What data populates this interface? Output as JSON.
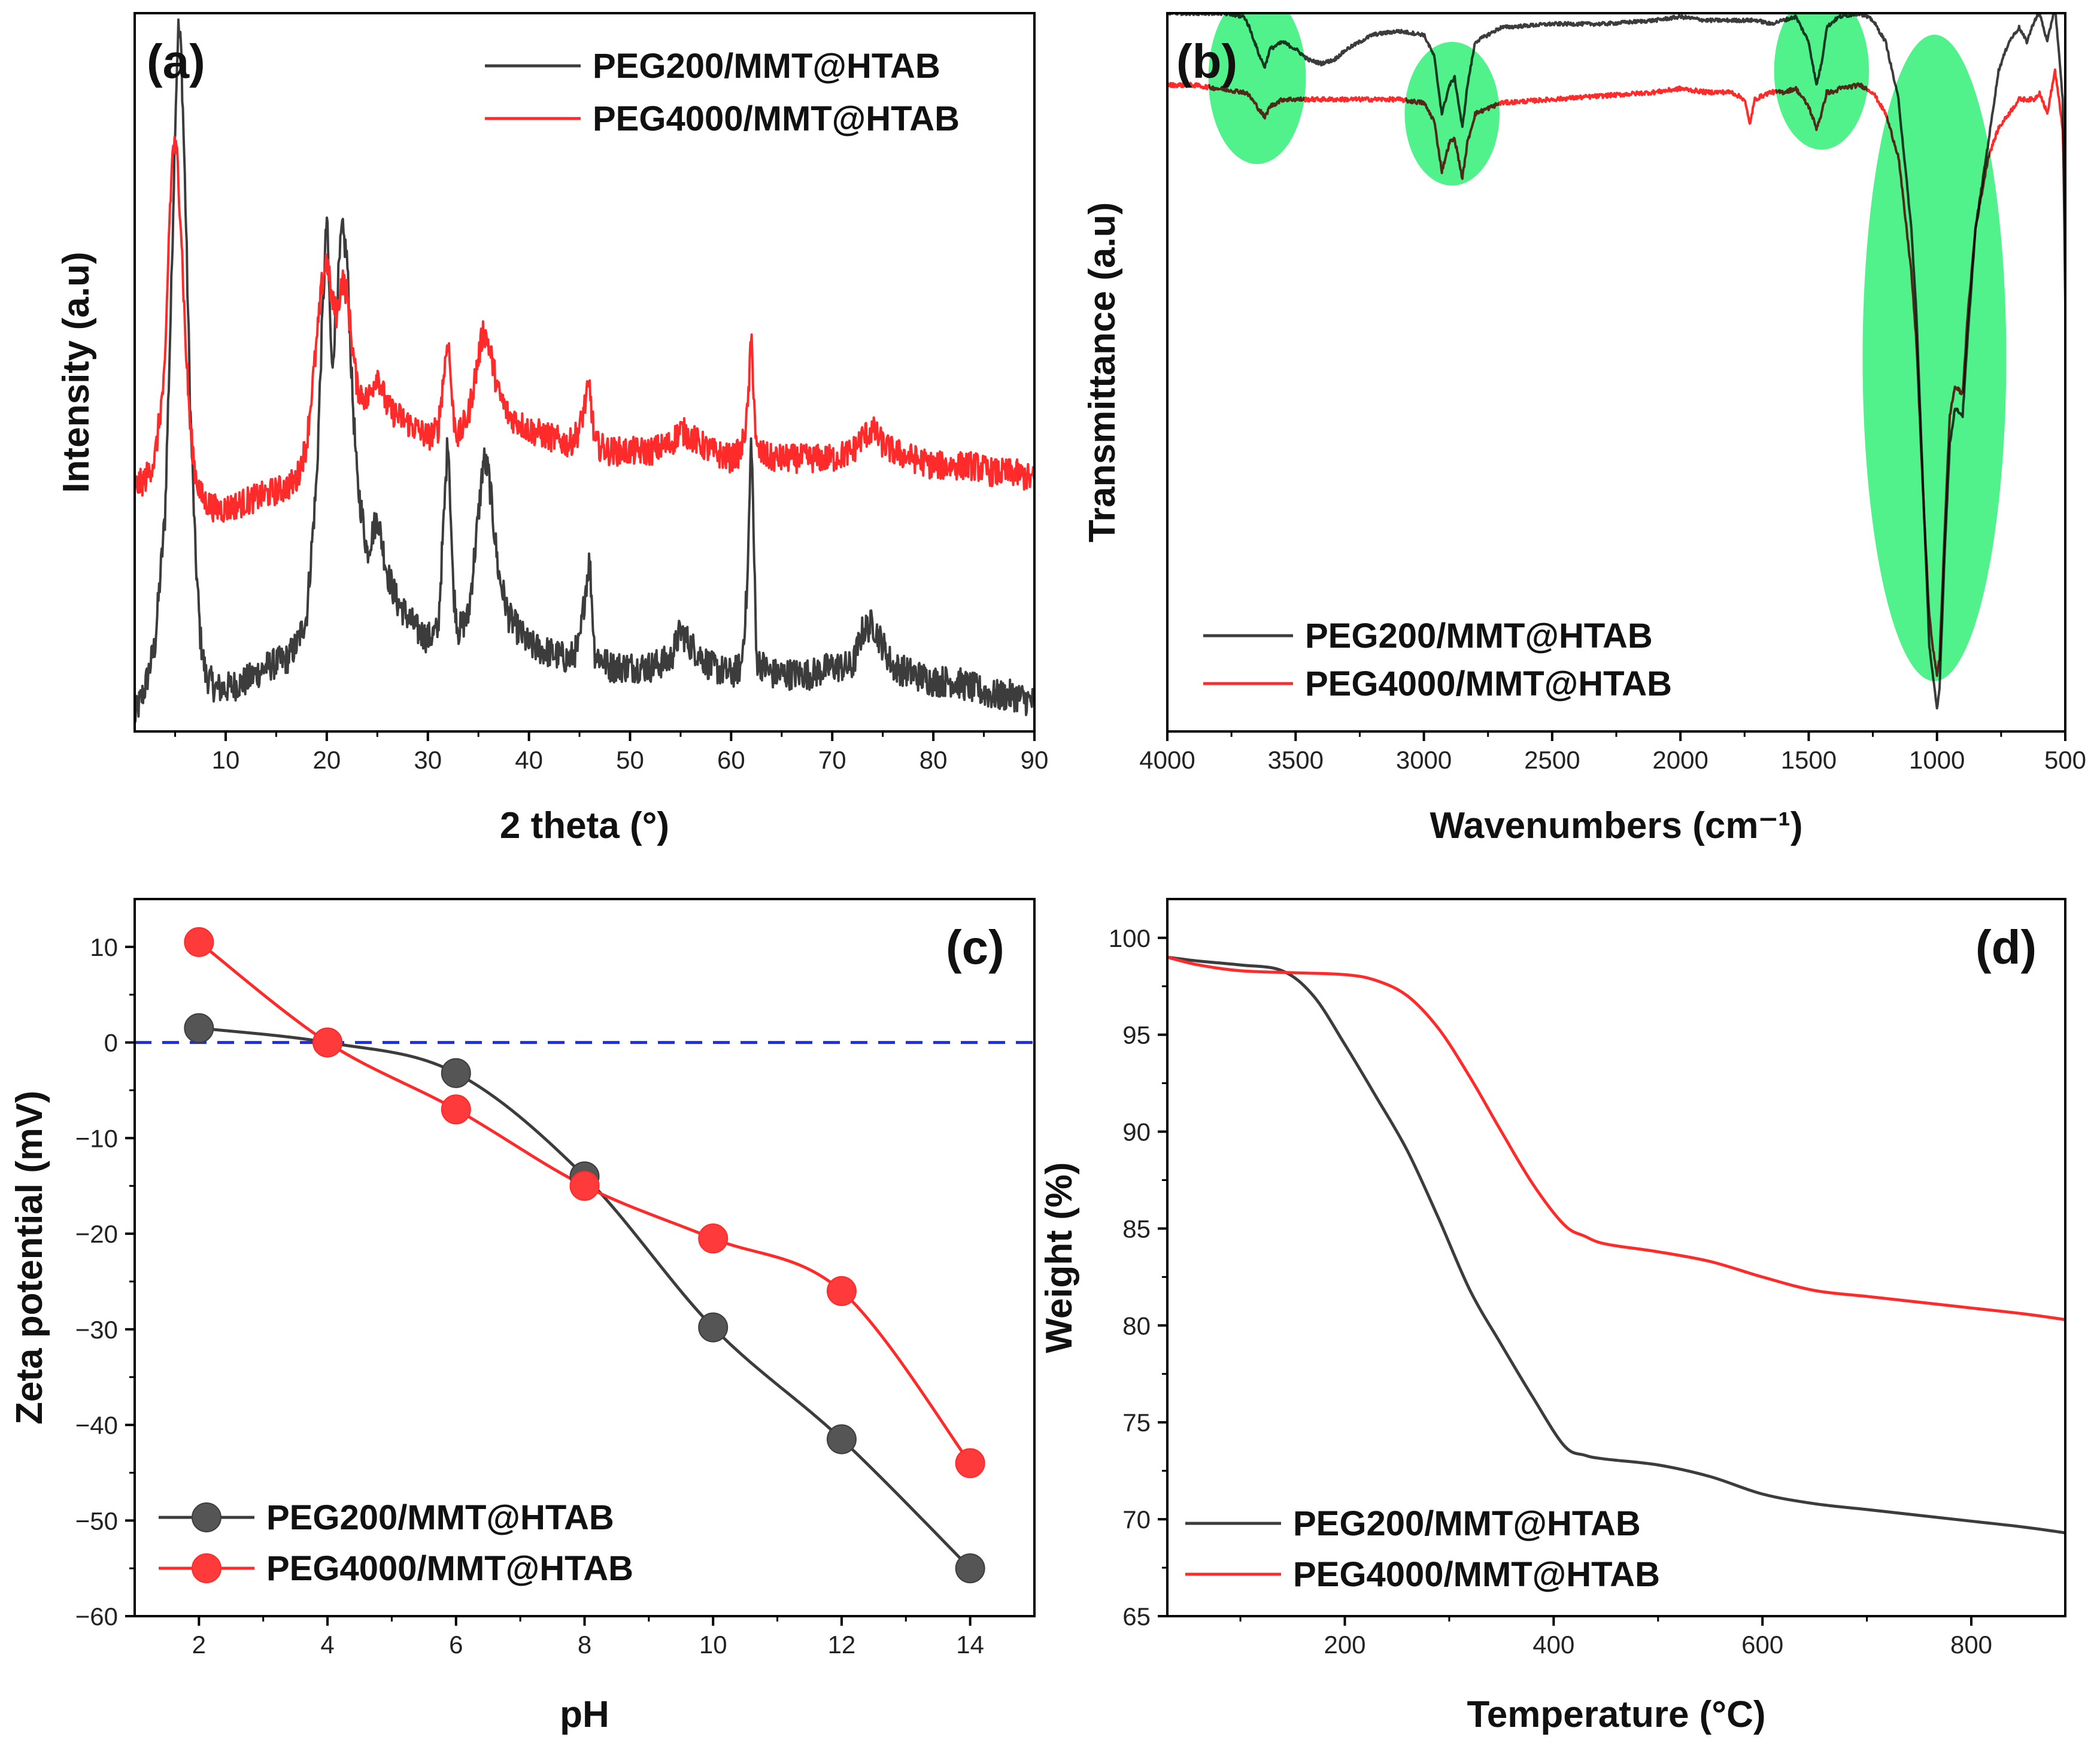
{
  "chart_data": [
    {
      "id": "a",
      "type": "line",
      "panel_label": "(a)",
      "xlabel": "2 theta (°)",
      "ylabel": "Intensity (a.u)",
      "xlim": [
        1,
        90
      ],
      "ylim": [
        0,
        100
      ],
      "xticks": [
        10,
        20,
        30,
        40,
        50,
        60,
        70,
        80,
        90
      ],
      "yticks": [],
      "legend_position": "top-right",
      "series": [
        {
          "name": "PEG200/MMT@HTAB",
          "color": "#3c3c3c",
          "noise": 2.2,
          "x": [
            1,
            2,
            3,
            4,
            4.6,
            5.0,
            5.3,
            5.6,
            6.0,
            6.5,
            7.0,
            7.5,
            8,
            9,
            10,
            12,
            14,
            16,
            17,
            18,
            19,
            19.5,
            20,
            20.5,
            21,
            21.5,
            22,
            22.5,
            23,
            24,
            25,
            26,
            27,
            28,
            29,
            30,
            31,
            31.6,
            32,
            32.5,
            33,
            34,
            35,
            35.5,
            36,
            37,
            38,
            40,
            42,
            44,
            45,
            45.6,
            46,
            46.5,
            48,
            50,
            52,
            54,
            55,
            56,
            58,
            60,
            61,
            61.6,
            62,
            62.5,
            64,
            66,
            68,
            70,
            72,
            73,
            74,
            75,
            76,
            78,
            80,
            82,
            84,
            86,
            88,
            90
          ],
          "y": [
            2,
            6,
            12,
            30,
            60,
            85,
            98,
            95,
            75,
            45,
            25,
            13,
            8,
            6,
            6,
            7,
            9,
            10,
            12,
            16,
            35,
            55,
            72,
            50,
            60,
            70,
            66,
            48,
            35,
            25,
            30,
            22,
            18,
            16,
            14,
            13,
            14,
            30,
            42,
            20,
            14,
            16,
            30,
            38,
            36,
            22,
            16,
            12,
            11,
            10,
            12,
            20,
            24,
            11,
            9,
            9,
            9,
            10,
            14,
            12,
            9,
            8,
            9,
            20,
            42,
            10,
            8,
            8,
            8,
            9,
            9,
            14,
            15,
            12,
            9,
            8,
            7,
            7,
            6,
            5,
            5,
            4
          ]
        },
        {
          "name": "PEG4000/MMT@HTAB",
          "color": "#ff2b2b",
          "noise": 2.0,
          "x": [
            1,
            2,
            3,
            4,
            4.4,
            4.8,
            5.2,
            5.6,
            6.0,
            6.5,
            7.0,
            7.5,
            8,
            9,
            10,
            12,
            14,
            16,
            17,
            18,
            19,
            19.5,
            20,
            20.5,
            21,
            21.5,
            22,
            22.5,
            23,
            24,
            25,
            26,
            27,
            28,
            29,
            30,
            31,
            31.6,
            32,
            32.5,
            33,
            34,
            35,
            35.5,
            36,
            37,
            38,
            40,
            42,
            44,
            45,
            45.6,
            46,
            46.5,
            48,
            50,
            52,
            54,
            55,
            56,
            58,
            60,
            61,
            61.6,
            62,
            62.5,
            64,
            66,
            68,
            70,
            72,
            73,
            74,
            75,
            76,
            78,
            80,
            82,
            84,
            86,
            88,
            90
          ],
          "y": [
            34,
            35,
            38,
            50,
            70,
            82,
            80,
            70,
            55,
            42,
            36,
            33,
            32,
            31,
            31,
            32,
            33,
            34,
            35,
            40,
            54,
            62,
            66,
            60,
            58,
            63,
            61,
            54,
            48,
            46,
            50,
            45,
            44,
            43,
            42,
            41,
            42,
            50,
            55,
            44,
            41,
            44,
            52,
            56,
            54,
            47,
            44,
            42,
            41,
            40,
            42,
            46,
            48,
            40,
            39,
            39,
            39,
            40,
            42,
            41,
            39,
            38,
            39,
            44,
            55,
            39,
            38,
            38,
            38,
            38,
            39,
            41,
            42,
            40,
            39,
            38,
            37,
            37,
            37,
            36,
            36,
            35
          ]
        }
      ]
    },
    {
      "id": "b",
      "type": "line",
      "panel_label": "(b)",
      "xlabel": "Wavenumbers (cm⁻¹)",
      "ylabel": "Transmittance (a.u)",
      "xlim": [
        4000,
        500
      ],
      "ylim": [
        0,
        100
      ],
      "xticks": [
        4000,
        3500,
        3000,
        2500,
        2000,
        1500,
        1000,
        500
      ],
      "yticks": [],
      "legend_position": "bottom-left",
      "highlight_color": "#33ee77",
      "highlights": [
        {
          "cx": 3650,
          "cy": 91,
          "rx": 190,
          "ry": 12
        },
        {
          "cx": 2890,
          "cy": 86,
          "rx": 185,
          "ry": 10
        },
        {
          "cx": 1450,
          "cy": 92,
          "rx": 185,
          "ry": 11
        },
        {
          "cx": 1010,
          "cy": 52,
          "rx": 280,
          "ry": 45
        }
      ],
      "series": [
        {
          "name": "PEG200/MMT@HTAB",
          "color": "#3c3c3c",
          "noise": 0.25,
          "x": [
            4000,
            3900,
            3800,
            3700,
            3680,
            3640,
            3620,
            3600,
            3550,
            3500,
            3450,
            3400,
            3350,
            3300,
            3200,
            3100,
            3000,
            2960,
            2930,
            2900,
            2880,
            2850,
            2830,
            2800,
            2700,
            2500,
            2300,
            2100,
            2000,
            1900,
            1800,
            1700,
            1650,
            1600,
            1550,
            1500,
            1470,
            1450,
            1430,
            1400,
            1380,
            1300,
            1250,
            1200,
            1150,
            1100,
            1080,
            1050,
            1030,
            1010,
            1000,
            990,
            970,
            950,
            930,
            900,
            880,
            850,
            800,
            760,
            720,
            700,
            680,
            650,
            620,
            600,
            570,
            540,
            510,
            500
          ],
          "y": [
            100,
            100,
            100,
            99.5,
            98,
            94,
            92.5,
            95,
            96,
            95,
            93.5,
            93,
            93.5,
            95,
            97,
            97.5,
            97,
            94,
            86,
            90,
            91,
            84,
            90,
            96,
            98,
            98.5,
            98.5,
            99,
            99.5,
            99,
            99,
            99,
            98.5,
            99,
            99.5,
            96,
            90,
            93,
            98,
            99,
            99.5,
            100,
            99,
            96,
            88,
            70,
            58,
            30,
            12,
            6,
            3,
            6,
            25,
            40,
            45,
            44,
            55,
            70,
            82,
            92,
            96,
            97,
            98,
            96,
            99,
            100,
            96,
            101,
            88,
            60
          ]
        },
        {
          "name": "PEG4000/MMT@HTAB",
          "color": "#ff2b2b",
          "noise": 0.3,
          "x": [
            4000,
            3900,
            3800,
            3700,
            3680,
            3640,
            3620,
            3600,
            3550,
            3500,
            3450,
            3400,
            3350,
            3300,
            3200,
            3100,
            3000,
            2960,
            2930,
            2900,
            2880,
            2850,
            2830,
            2800,
            2700,
            2500,
            2300,
            2100,
            2000,
            1900,
            1800,
            1750,
            1730,
            1710,
            1650,
            1600,
            1550,
            1500,
            1470,
            1450,
            1430,
            1400,
            1380,
            1300,
            1250,
            1200,
            1150,
            1100,
            1080,
            1050,
            1030,
            1010,
            1000,
            990,
            970,
            950,
            930,
            900,
            880,
            850,
            800,
            760,
            720,
            700,
            680,
            650,
            620,
            600,
            570,
            540,
            510,
            500
          ],
          "y": [
            90,
            90,
            89.5,
            89,
            88.5,
            86.5,
            85.5,
            87,
            88,
            88,
            88,
            88,
            88,
            88,
            88,
            88,
            87.5,
            85,
            78,
            82,
            82.5,
            77,
            82,
            86,
            87.5,
            88,
            88.5,
            89,
            89.5,
            89,
            89,
            88,
            84.5,
            88,
            89,
            89,
            89.5,
            87,
            84,
            86,
            89,
            89,
            89.5,
            90,
            89,
            86,
            80,
            64,
            54,
            30,
            16,
            10,
            8,
            10,
            28,
            44,
            48,
            47,
            58,
            70,
            80,
            84,
            86,
            87,
            88,
            88,
            88,
            89,
            86,
            92,
            84,
            70
          ]
        }
      ]
    },
    {
      "id": "c",
      "type": "line",
      "panel_label": "(c)",
      "xlabel": "pH",
      "ylabel": "Zeta potential (mV)",
      "xlim": [
        1,
        15
      ],
      "ylim": [
        -60,
        15
      ],
      "xticks": [
        2,
        4,
        6,
        8,
        10,
        12,
        14
      ],
      "yticks": [
        10,
        0,
        -10,
        -20,
        -30,
        -40,
        -50,
        -60
      ],
      "ytick_labels": [
        "10",
        "0",
        "−10",
        "−20",
        "−30",
        "−40",
        "−50",
        "−60"
      ],
      "zero_line_color": "#1e2fe0",
      "legend_position": "bottom-left",
      "series": [
        {
          "name": "PEG200/MMT@HTAB",
          "color": "#3c3c3c",
          "marker_fill": "#555555",
          "x": [
            2,
            4,
            6,
            8,
            10,
            12,
            14
          ],
          "y": [
            1.5,
            0,
            -3.2,
            -14,
            -29.8,
            -41.5,
            -55
          ]
        },
        {
          "name": "PEG4000/MMT@HTAB",
          "color": "#ff2b2b",
          "marker_fill": "#ff3a3a",
          "x": [
            2,
            4,
            6,
            8,
            10,
            12,
            14
          ],
          "y": [
            10.5,
            0,
            -7,
            -15,
            -20.5,
            -26,
            -44
          ]
        }
      ]
    },
    {
      "id": "d",
      "type": "line",
      "panel_label": "(d)",
      "xlabel": "Temperature (°C)",
      "ylabel": "Weight (%)",
      "xlim": [
        30,
        890
      ],
      "ylim": [
        65,
        102
      ],
      "xticks": [
        200,
        400,
        600,
        800
      ],
      "yticks": [
        65,
        70,
        75,
        80,
        85,
        90,
        95,
        100
      ],
      "legend_position": "bottom-left",
      "series": [
        {
          "name": "PEG200/MMT@HTAB",
          "color": "#3c3c3c",
          "x": [
            30,
            60,
            100,
            140,
            170,
            200,
            230,
            260,
            290,
            320,
            350,
            380,
            410,
            430,
            450,
            500,
            550,
            600,
            650,
            700,
            750,
            800,
            850,
            890
          ],
          "y": [
            99,
            98.8,
            98.6,
            98.3,
            97,
            94.5,
            91.8,
            89,
            85.5,
            81.8,
            79,
            76.3,
            73.8,
            73.3,
            73.1,
            72.8,
            72.2,
            71.3,
            70.8,
            70.5,
            70.2,
            69.9,
            69.6,
            69.3
          ]
        },
        {
          "name": "PEG4000/MMT@HTAB",
          "color": "#ff2b2b",
          "x": [
            30,
            60,
            100,
            150,
            200,
            230,
            260,
            290,
            320,
            350,
            380,
            410,
            430,
            450,
            500,
            550,
            600,
            650,
            700,
            750,
            800,
            850,
            890
          ],
          "y": [
            99,
            98.6,
            98.3,
            98.2,
            98.1,
            97.8,
            97,
            95.3,
            92.8,
            90,
            87.3,
            85.2,
            84.6,
            84.2,
            83.8,
            83.3,
            82.5,
            81.8,
            81.5,
            81.2,
            80.9,
            80.6,
            80.3
          ]
        }
      ]
    }
  ]
}
